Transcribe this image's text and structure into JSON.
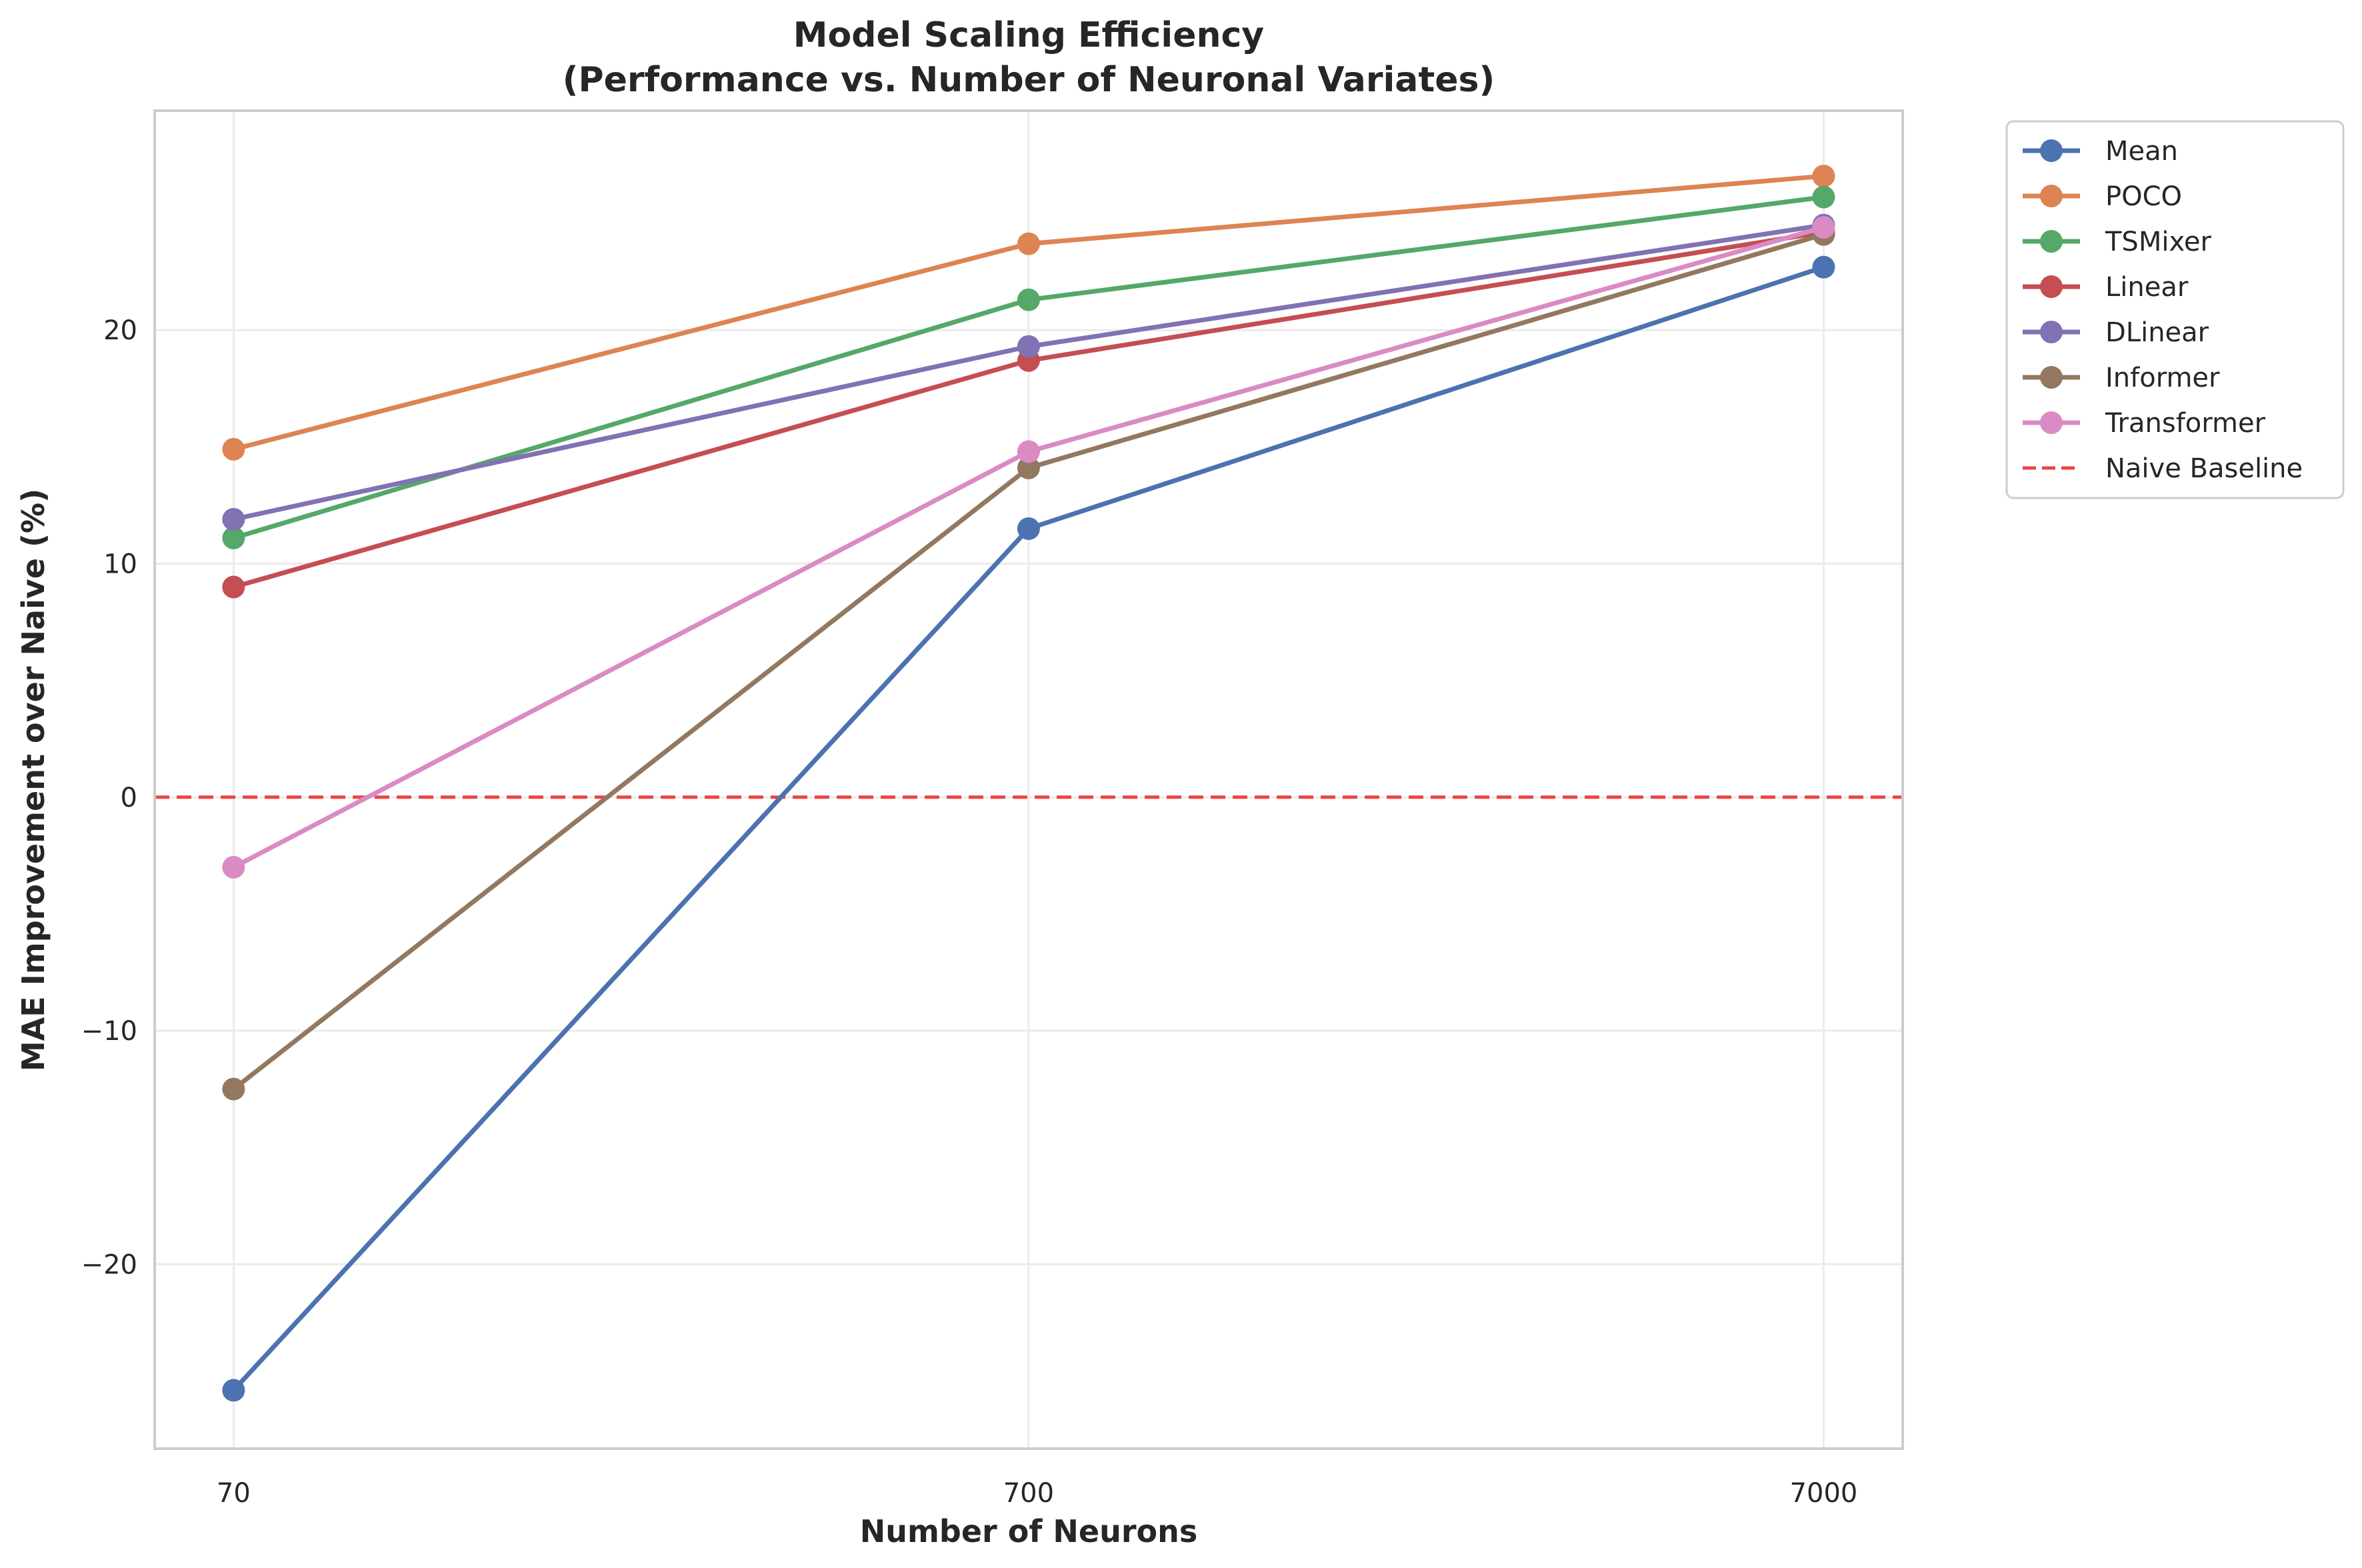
{
  "chart_data": {
    "type": "line",
    "title_line1": "Model Scaling Efficiency",
    "title_line2": "(Performance vs. Number of Neuronal Variates)",
    "xlabel": "Number of Neurons",
    "ylabel": "MAE Improvement over Naive (%)",
    "x_scale": "log",
    "x": [
      70,
      700,
      7000
    ],
    "x_tick_labels": [
      "70",
      "700",
      "7000"
    ],
    "xlim": [
      55.7,
      8800
    ],
    "ylim": [
      -27.9,
      29.4
    ],
    "y_ticks": [
      -20,
      -10,
      0,
      10,
      20
    ],
    "y_tick_labels": [
      "−20",
      "−10",
      "0",
      "10",
      "20"
    ],
    "grid": true,
    "legend_position": "outside-top-right",
    "series": [
      {
        "name": "Mean",
        "color": "#4c72b0",
        "values": [
          -25.4,
          11.5,
          22.7
        ]
      },
      {
        "name": "POCO",
        "color": "#dd8452",
        "values": [
          14.9,
          23.7,
          26.6
        ]
      },
      {
        "name": "TSMixer",
        "color": "#55a868",
        "values": [
          11.1,
          21.3,
          25.7
        ]
      },
      {
        "name": "Linear",
        "color": "#c44e52",
        "values": [
          9.0,
          18.7,
          24.2
        ]
      },
      {
        "name": "DLinear",
        "color": "#8172b3",
        "values": [
          11.9,
          19.3,
          24.5
        ]
      },
      {
        "name": "Informer",
        "color": "#937860",
        "values": [
          -12.5,
          14.1,
          24.1
        ]
      },
      {
        "name": "Transformer",
        "color": "#da8bc3",
        "values": [
          -3.0,
          14.8,
          24.4
        ]
      }
    ],
    "baseline": {
      "name": "Naive Baseline",
      "value": 0,
      "color": "#ee4444",
      "style": "dashed"
    }
  }
}
